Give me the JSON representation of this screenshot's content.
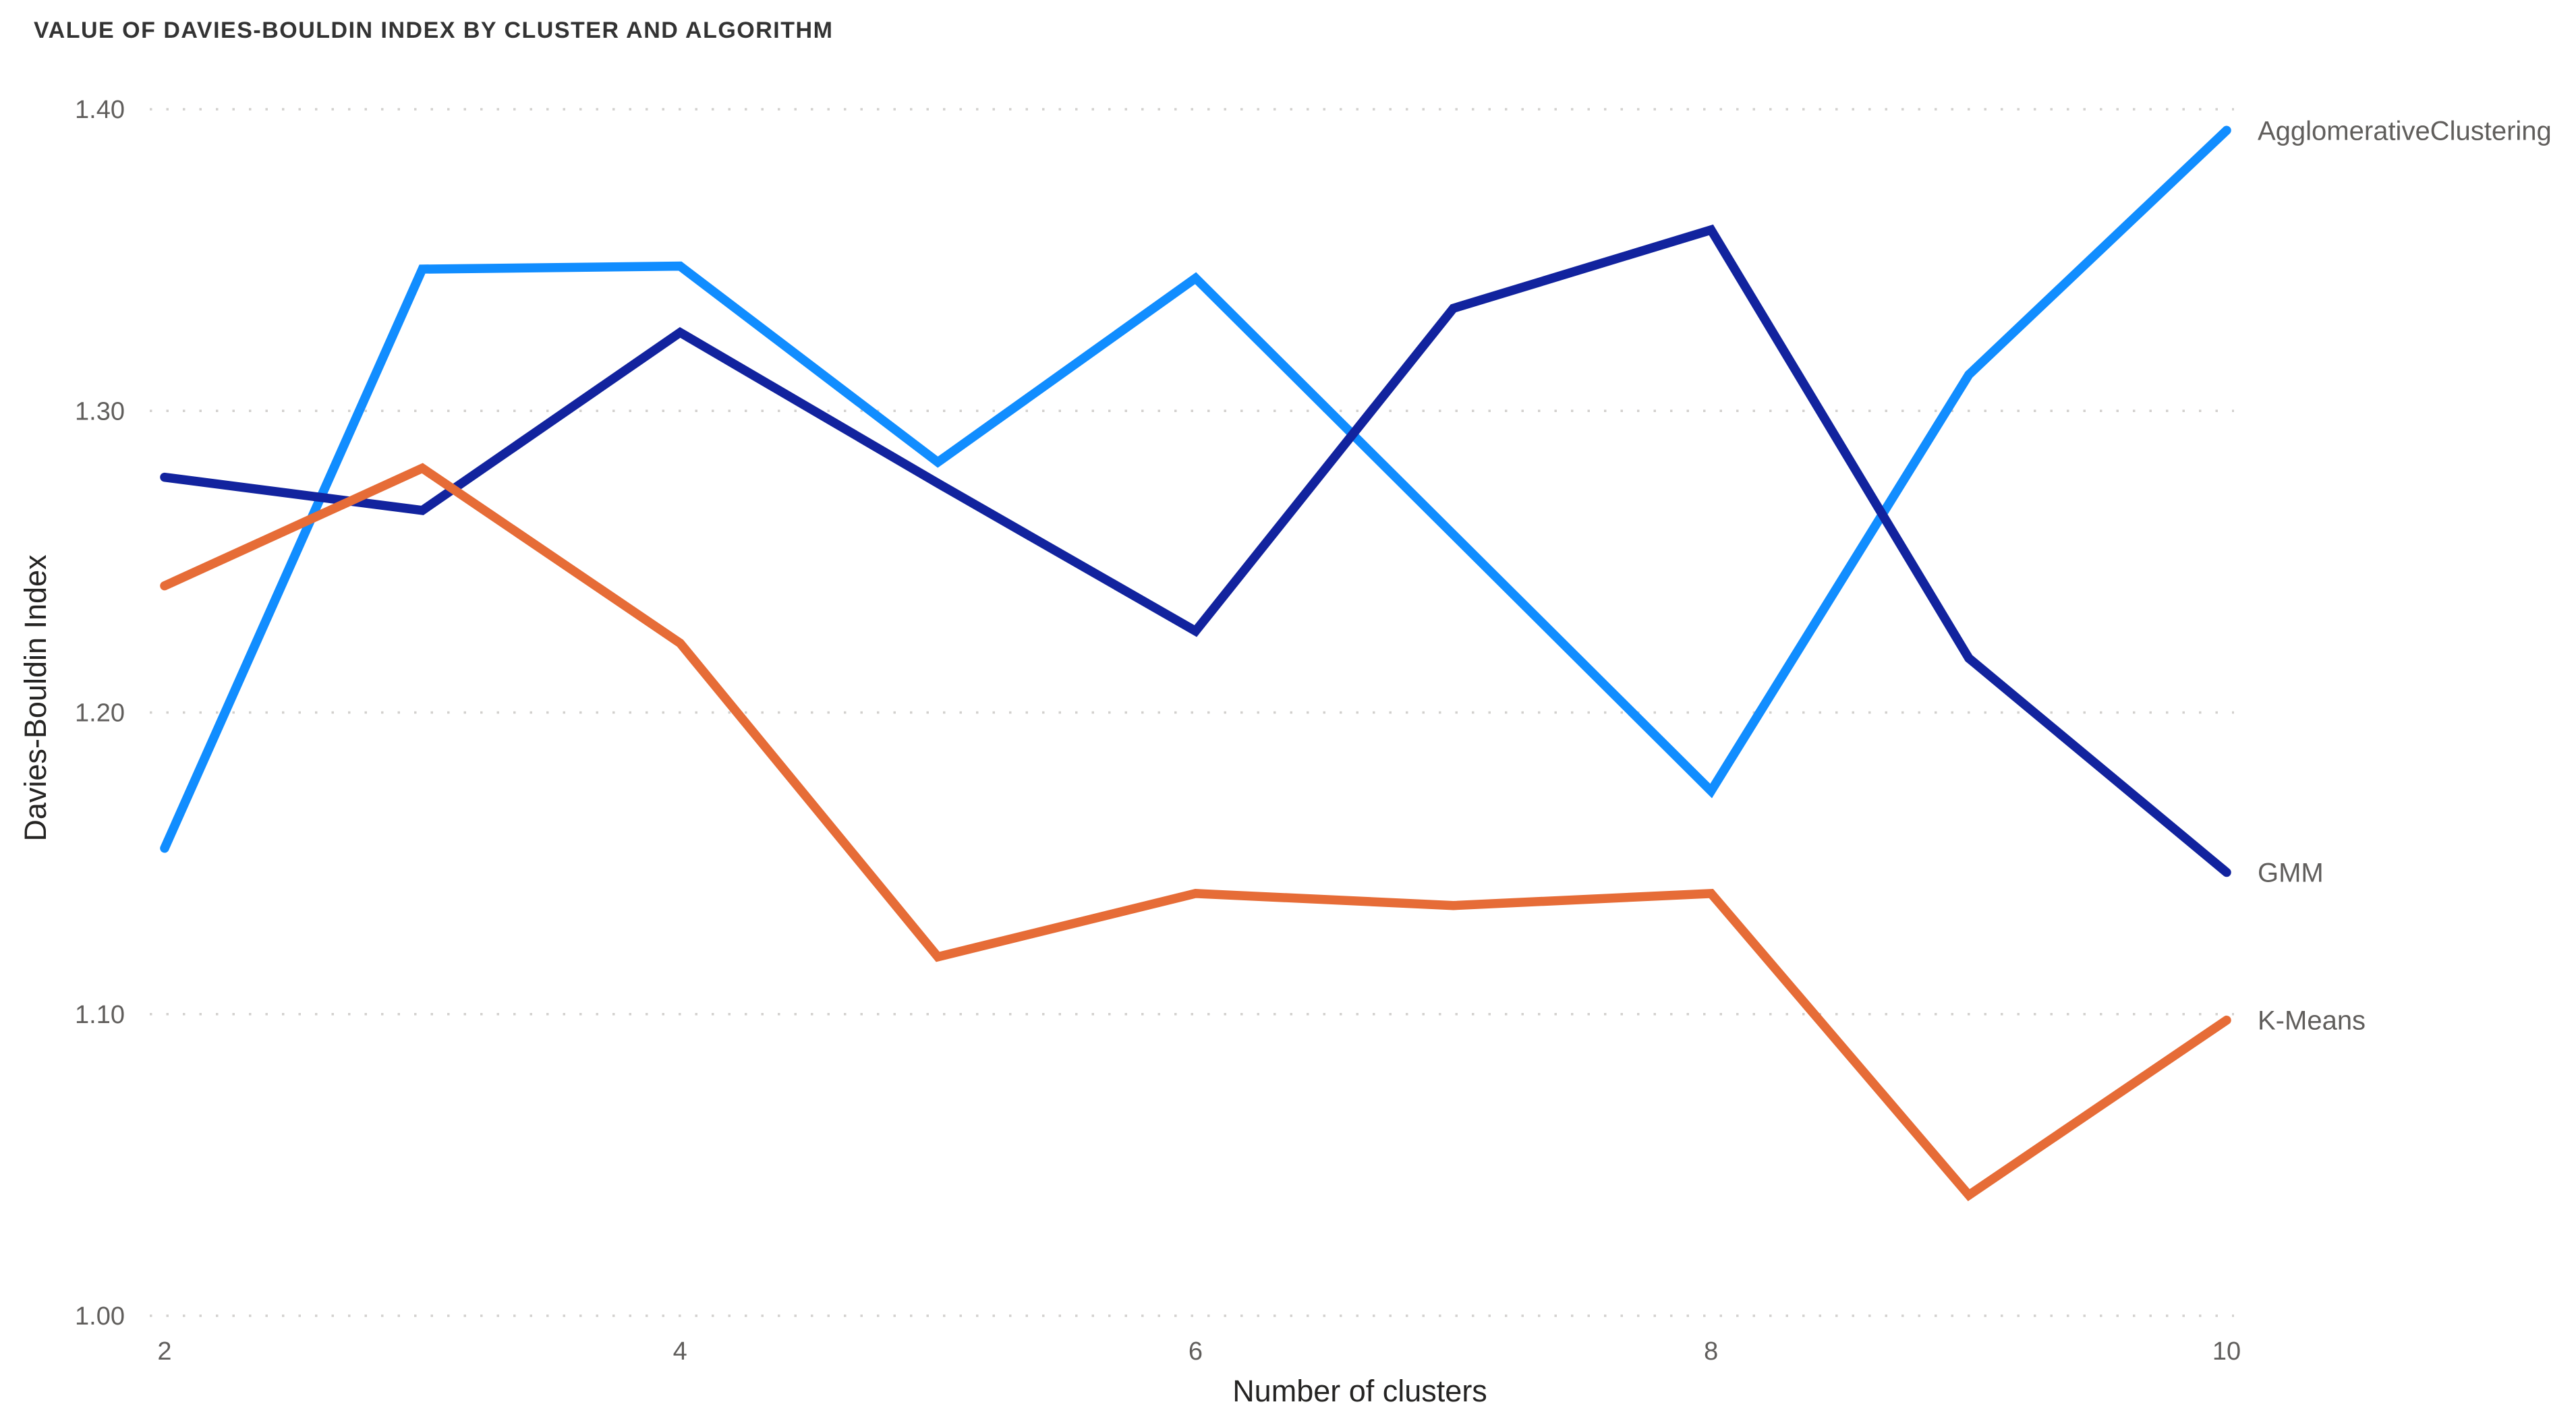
{
  "title": "VALUE OF DAVIES-BOULDIN INDEX BY CLUSTER AND ALGORITHM",
  "colors": {
    "background": "#FFFFFF",
    "title_text": "#333333",
    "axis_title_text": "#252423",
    "tick_label_text": "#605E5C",
    "series_label_text": "#605E5C",
    "gridline": "#D2D0CE",
    "agglomerative_blue": "#118DFF",
    "gmm_dark_blue": "#12239E",
    "kmeans_orange": "#E66C37"
  },
  "chart_data": {
    "type": "line",
    "title": "VALUE OF DAVIES-BOULDIN INDEX BY CLUSTER AND ALGORITHM",
    "xlabel": "Number of clusters",
    "ylabel": "Davies-Bouldin Index",
    "xlim": [
      2,
      10
    ],
    "ylim": [
      1.0,
      1.4
    ],
    "x": [
      2,
      3,
      4,
      5,
      6,
      7,
      8,
      9,
      10
    ],
    "x_tick_labels": [
      "2",
      "4",
      "6",
      "8",
      "10"
    ],
    "x_tick_values": [
      2,
      4,
      6,
      8,
      10
    ],
    "y_tick_labels": [
      "1.00",
      "1.10",
      "1.20",
      "1.30",
      "1.40"
    ],
    "y_tick_values": [
      1.0,
      1.1,
      1.2,
      1.3,
      1.4
    ],
    "grid": "horizontal dotted",
    "legend_position": "line-end-labels-right",
    "series": [
      {
        "name": "AgglomerativeClustering",
        "color": "#118DFF",
        "values": [
          1.155,
          1.347,
          1.348,
          1.283,
          1.344,
          1.259,
          1.174,
          1.312,
          1.393
        ]
      },
      {
        "name": "GMM",
        "color": "#12239E",
        "values": [
          1.278,
          1.267,
          1.326,
          1.276,
          1.227,
          1.334,
          1.36,
          1.218,
          1.147
        ]
      },
      {
        "name": "K-Means",
        "color": "#E66C37",
        "values": [
          1.242,
          1.281,
          1.223,
          1.119,
          1.14,
          1.136,
          1.14,
          1.04,
          1.098
        ]
      }
    ]
  }
}
